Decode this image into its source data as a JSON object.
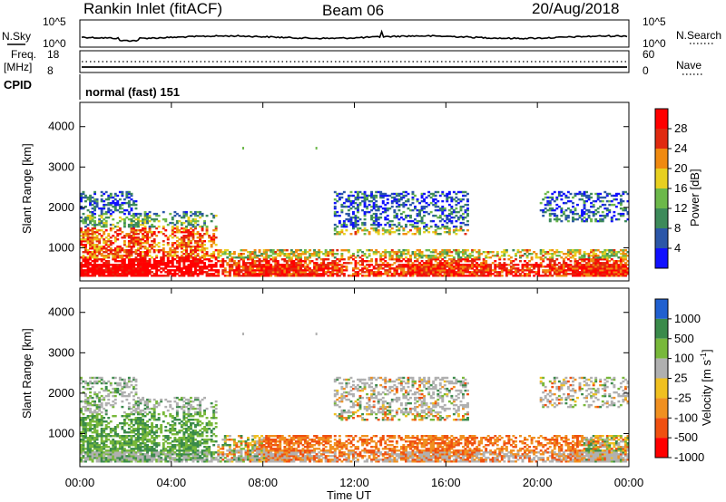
{
  "header": {
    "station": "Rankin Inlet (fitACF)",
    "beam": "Beam 06",
    "date": "20/Aug/2018"
  },
  "noise_panel": {
    "left_label": "N.Sky",
    "right_label": "N.Search",
    "left_ticks": [
      "10^5",
      "10^0"
    ],
    "right_ticks": [
      "10^5",
      "10^0"
    ]
  },
  "freq_panel": {
    "left_label_1": "Freq.",
    "left_label_2": "[MHz]",
    "right_label": "Nave",
    "left_ticks": [
      "18",
      "8"
    ],
    "right_ticks": [
      "60",
      "0"
    ]
  },
  "cpid": {
    "label": "CPID",
    "value": "normal (fast) 151"
  },
  "chart_data": [
    {
      "type": "heatmap",
      "name": "power",
      "ylabel": "Slant Range [km]",
      "ylim": [
        180,
        4600
      ],
      "y_ticks": [
        1000,
        2000,
        3000,
        4000
      ],
      "colorbar_label": "Power [dB]",
      "colorbar_ticks": [
        "4",
        "8",
        "12",
        "16",
        "20",
        "24",
        "28"
      ],
      "colors": [
        "#1010ff",
        "#2b56a8",
        "#3d8a5a",
        "#6cb84a",
        "#e8d020",
        "#f08a10",
        "#e02a10",
        "#ff0000"
      ]
    },
    {
      "type": "heatmap",
      "name": "velocity",
      "ylabel": "Slant Range [km]",
      "ylim": [
        180,
        4600
      ],
      "y_ticks": [
        1000,
        2000,
        3000,
        4000
      ],
      "colorbar_label": "Velocity [m s",
      "colorbar_label_sup": "-1",
      "colorbar_label_end": "]",
      "colorbar_ticks": [
        "1000",
        "500",
        "100",
        "25",
        "-25",
        "-100",
        "-500",
        "-1000"
      ],
      "colors": [
        "#2060d0",
        "#3a8a4a",
        "#78b83a",
        "#b0b0b0",
        "#f0c020",
        "#f09020",
        "#f05010",
        "#ff0000"
      ]
    }
  ],
  "time_axis": {
    "label": "Time UT",
    "ticks": [
      "00:00",
      "04:00",
      "08:00",
      "12:00",
      "16:00",
      "20:00",
      "00:00"
    ]
  }
}
